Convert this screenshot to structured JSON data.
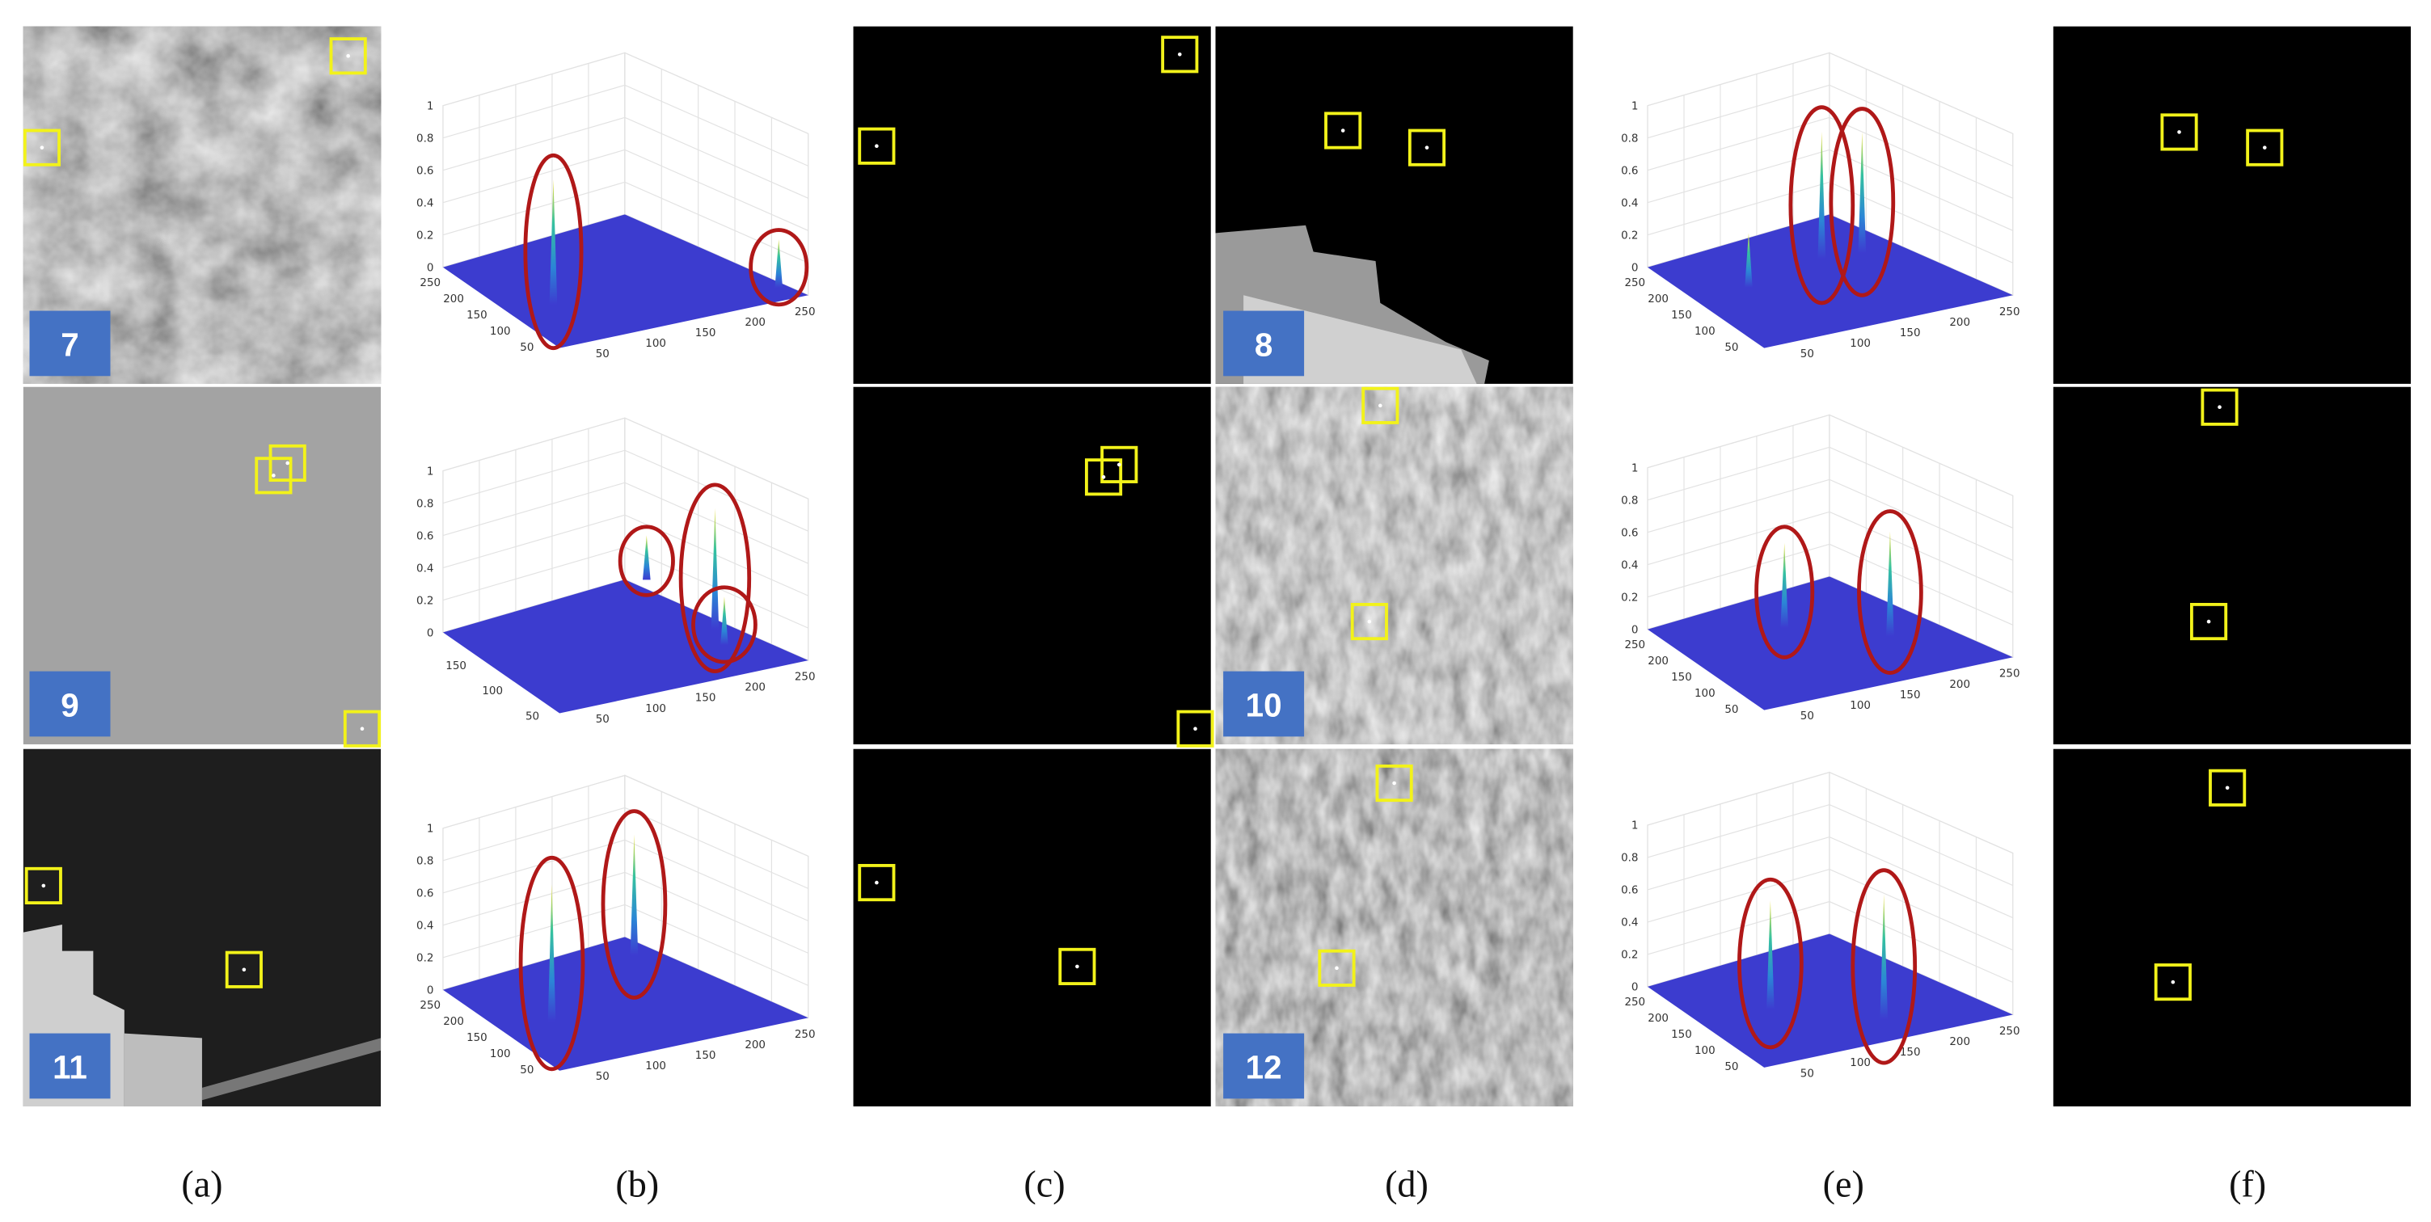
{
  "panel_labels": [
    "7",
    "8",
    "9",
    "10",
    "11",
    "12"
  ],
  "captions": [
    "(a)",
    "(b)",
    "(c)",
    "(d)",
    "(e)",
    "(f)"
  ],
  "plots": [
    {
      "z_ticks": [
        0,
        0.2,
        0.4,
        0.6,
        0.8,
        1
      ],
      "y_ticks": [
        250,
        200,
        150,
        100,
        50
      ],
      "x_ticks": [
        50,
        100,
        150,
        200,
        250
      ]
    },
    {
      "z_ticks": [
        0,
        0.2,
        0.4,
        0.6,
        0.8,
        1
      ],
      "y_ticks": [
        250,
        200,
        150,
        100,
        50
      ],
      "x_ticks": [
        50,
        100,
        150,
        200,
        250
      ]
    },
    {
      "z_ticks": [
        0,
        0.2,
        0.4,
        0.6,
        0.8,
        1
      ],
      "y_ticks": [
        150,
        100,
        50
      ],
      "x_ticks": [
        50,
        100,
        150,
        200,
        250
      ]
    },
    {
      "z_ticks": [
        0,
        0.2,
        0.4,
        0.6,
        0.8,
        1
      ],
      "y_ticks": [
        250,
        200,
        150,
        100,
        50
      ],
      "x_ticks": [
        50,
        100,
        150,
        200,
        250
      ]
    },
    {
      "z_ticks": [
        0,
        0.2,
        0.4,
        0.6,
        0.8,
        1
      ],
      "y_ticks": [
        250,
        200,
        150,
        100,
        50
      ],
      "x_ticks": [
        50,
        100,
        150,
        200,
        250
      ]
    },
    {
      "z_ticks": [
        0,
        0.2,
        0.4,
        0.6,
        0.8,
        1
      ],
      "y_ticks": [
        250,
        200,
        150,
        100,
        50
      ],
      "x_ticks": [
        50,
        100,
        150,
        200,
        250
      ]
    }
  ]
}
